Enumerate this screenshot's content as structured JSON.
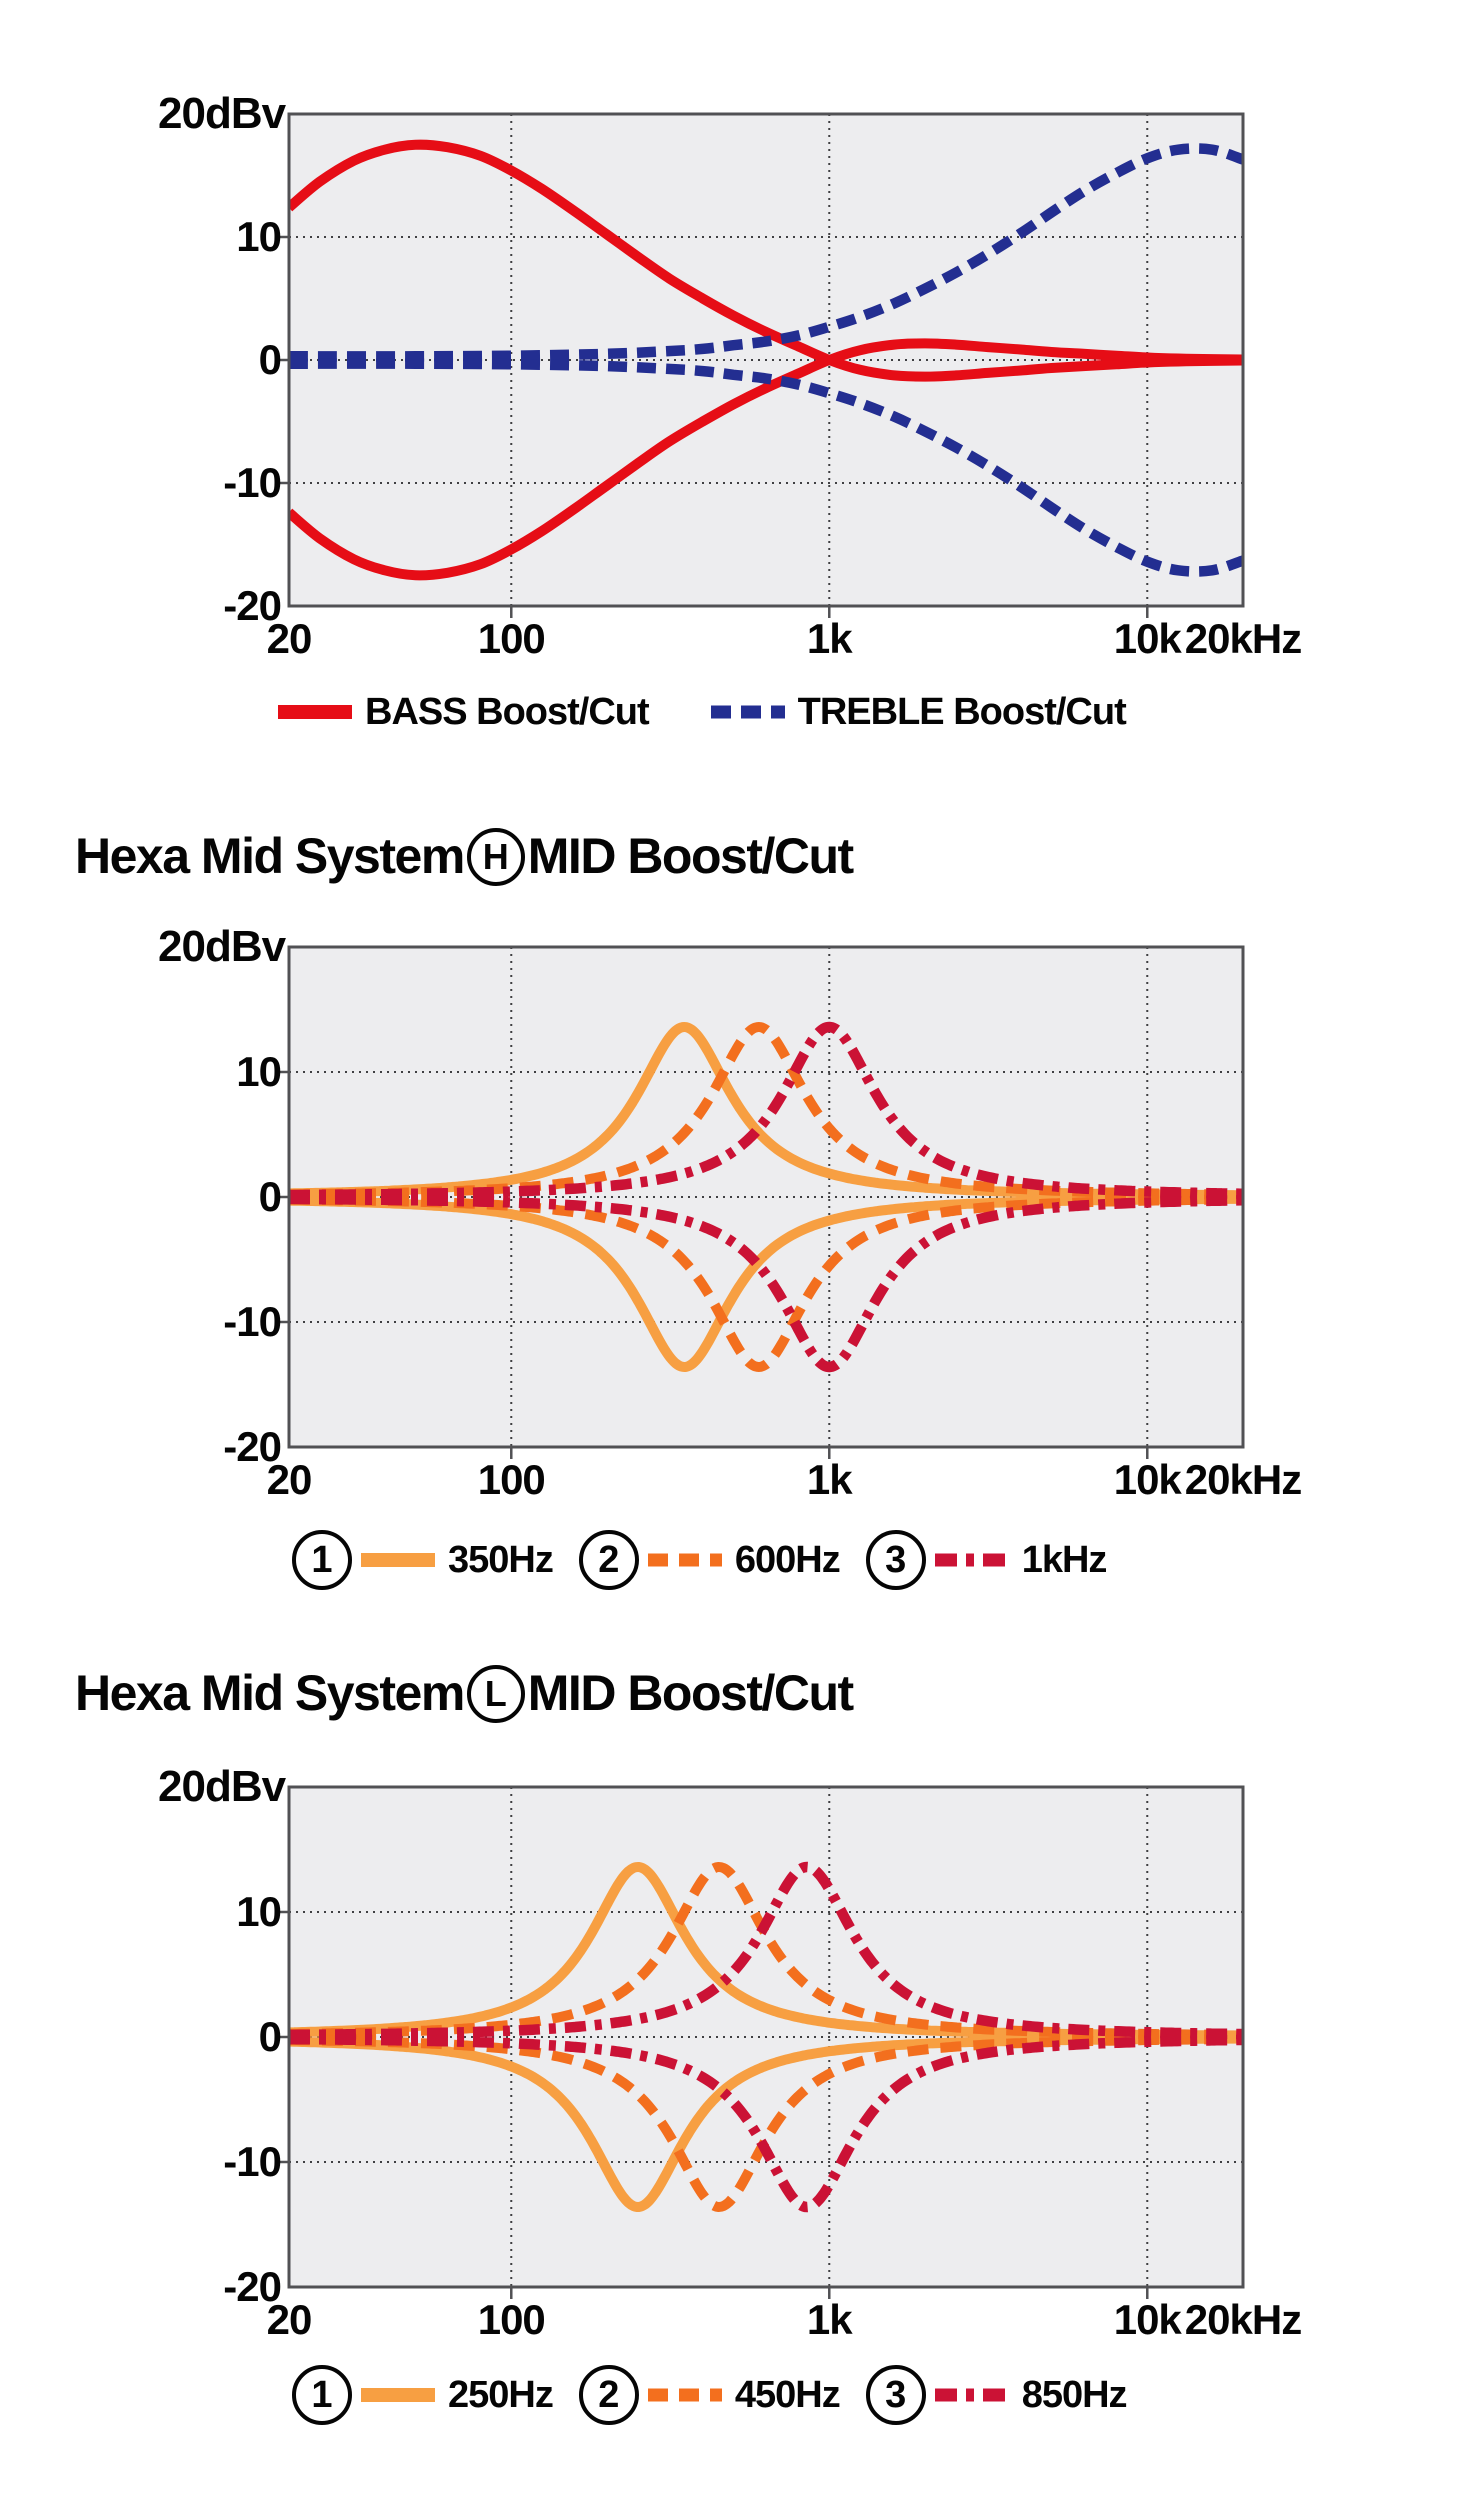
{
  "page": {
    "background": "#ffffff",
    "plot_bg": "#EDEDEF",
    "plot_border_color": "#515154",
    "grid_color": "#3F3F42",
    "text_color": "#050505"
  },
  "chart_data": [
    {
      "type": "line",
      "id": "tone-boost-cut",
      "unit_label": "20dBv",
      "xlabel": "",
      "ylabel": "dBv",
      "x_scale": "log",
      "x_range_hz": [
        20,
        20000
      ],
      "ylim": [
        -20,
        20
      ],
      "grid": "dotted",
      "y_ticks": [
        {
          "db": 10,
          "label": "10"
        },
        {
          "db": 0,
          "label": "0"
        },
        {
          "db": -10,
          "label": "-10"
        },
        {
          "db": -20,
          "label": "-20"
        }
      ],
      "x_ticks": [
        {
          "f": 20,
          "label": "20"
        },
        {
          "f": 100,
          "label": "100"
        },
        {
          "f": 1000,
          "label": "1k"
        },
        {
          "f": 10000,
          "label": "10k"
        },
        {
          "f": 20000,
          "label": "20kHz"
        }
      ],
      "series": [
        {
          "name": "BASS boost",
          "mirror_name": "BASS cut",
          "color": "#E60D16",
          "style": "solid",
          "width": 10,
          "dash": null,
          "mirror": true,
          "type": "points",
          "points": [
            [
              20,
              12.4
            ],
            [
              25,
              14.5
            ],
            [
              32,
              16.2
            ],
            [
              40,
              17.1
            ],
            [
              50,
              17.5
            ],
            [
              63,
              17.3
            ],
            [
              80,
              16.6
            ],
            [
              100,
              15.4
            ],
            [
              125,
              13.9
            ],
            [
              160,
              12.0
            ],
            [
              200,
              10.2
            ],
            [
              250,
              8.4
            ],
            [
              315,
              6.6
            ],
            [
              400,
              5.0
            ],
            [
              500,
              3.6
            ],
            [
              630,
              2.3
            ],
            [
              800,
              1.1
            ],
            [
              1000,
              0.0
            ],
            [
              1250,
              -0.8
            ],
            [
              1600,
              -1.25
            ],
            [
              2000,
              -1.35
            ],
            [
              2500,
              -1.25
            ],
            [
              3150,
              -1.05
            ],
            [
              4000,
              -0.85
            ],
            [
              5000,
              -0.65
            ],
            [
              6300,
              -0.5
            ],
            [
              8000,
              -0.35
            ],
            [
              10000,
              -0.2
            ],
            [
              12500,
              -0.12
            ],
            [
              16000,
              -0.07
            ],
            [
              20000,
              -0.04
            ]
          ]
        },
        {
          "name": "TREBLE boost",
          "mirror_name": "TREBLE cut",
          "color": "#232E91",
          "style": "dashed",
          "width": 10.5,
          "dash": [
            19,
            10
          ],
          "mirror": true,
          "type": "points",
          "points": [
            [
              20,
              0.3
            ],
            [
              50,
              0.3
            ],
            [
              100,
              0.35
            ],
            [
              200,
              0.5
            ],
            [
              300,
              0.7
            ],
            [
              400,
              0.9
            ],
            [
              500,
              1.2
            ],
            [
              630,
              1.5
            ],
            [
              800,
              2.0
            ],
            [
              1000,
              2.7
            ],
            [
              1250,
              3.5
            ],
            [
              1600,
              4.6
            ],
            [
              2000,
              5.8
            ],
            [
              2500,
              7.1
            ],
            [
              3150,
              8.6
            ],
            [
              4000,
              10.3
            ],
            [
              5000,
              12.0
            ],
            [
              6300,
              13.7
            ],
            [
              8000,
              15.2
            ],
            [
              10000,
              16.4
            ],
            [
              12500,
              17.1
            ],
            [
              16000,
              17.1
            ],
            [
              20000,
              16.3
            ]
          ]
        }
      ],
      "legend": [
        {
          "swatch": "solid",
          "color": "#E60D16",
          "dash": null,
          "label": "BASS Boost/Cut"
        },
        {
          "swatch": "dashed",
          "color": "#232E91",
          "dash": [
            20,
            10
          ],
          "label": "TREBLE Boost/Cut"
        }
      ]
    },
    {
      "type": "line",
      "id": "hexa-mid-h",
      "title": {
        "pre": "Hexa Mid System",
        "badge": "H",
        "post": "MID Boost/Cut"
      },
      "unit_label": "20dBv",
      "x_scale": "log",
      "x_range_hz": [
        20,
        20000
      ],
      "ylim": [
        -20,
        20
      ],
      "grid": "dotted",
      "y_ticks": [
        {
          "db": 10,
          "label": "10"
        },
        {
          "db": 0,
          "label": "0"
        },
        {
          "db": -10,
          "label": "-10"
        },
        {
          "db": -20,
          "label": "-20"
        }
      ],
      "x_ticks": [
        {
          "f": 20,
          "label": "20"
        },
        {
          "f": 100,
          "label": "100"
        },
        {
          "f": 1000,
          "label": "1k"
        },
        {
          "f": 10000,
          "label": "10k"
        },
        {
          "f": 20000,
          "label": "20kHz"
        }
      ],
      "series": [
        {
          "name": "350Hz boost/cut",
          "color": "#F79F42",
          "style": "solid",
          "width": 10,
          "dash": null,
          "mirror": true,
          "type": "peak",
          "f0": 350,
          "gain_db": 13.6,
          "width_ln": 0.42
        },
        {
          "name": "600Hz boost/cut",
          "color": "#F36F1E",
          "style": "dashed",
          "width": 10,
          "dash": [
            21,
            12
          ],
          "mirror": true,
          "type": "peak",
          "f0": 600,
          "gain_db": 13.6,
          "width_ln": 0.42
        },
        {
          "name": "1kHz boost/cut",
          "color": "#CB1235",
          "style": "dashdot",
          "width": 10.5,
          "dash": [
            21,
            9,
            7,
            9
          ],
          "mirror": true,
          "type": "peak",
          "f0": 1000,
          "gain_db": 13.6,
          "width_ln": 0.42
        }
      ],
      "legend": [
        {
          "num": "1",
          "swatch": "solid",
          "color": "#F79F42",
          "dash": null,
          "label": "350Hz"
        },
        {
          "num": "2",
          "swatch": "dashed",
          "color": "#F36F1E",
          "dash": [
            20,
            11
          ],
          "label": "600Hz"
        },
        {
          "num": "3",
          "swatch": "dashdot",
          "color": "#CB1235",
          "dash": [
            22,
            9,
            8,
            9
          ],
          "label": "1kHz"
        }
      ]
    },
    {
      "type": "line",
      "id": "hexa-mid-l",
      "title": {
        "pre": "Hexa Mid System",
        "badge": "L",
        "post": "MID Boost/Cut"
      },
      "unit_label": "20dBv",
      "x_scale": "log",
      "x_range_hz": [
        20,
        20000
      ],
      "ylim": [
        -20,
        20
      ],
      "grid": "dotted",
      "y_ticks": [
        {
          "db": 10,
          "label": "10"
        },
        {
          "db": 0,
          "label": "0"
        },
        {
          "db": -10,
          "label": "-10"
        },
        {
          "db": -20,
          "label": "-20"
        }
      ],
      "x_ticks": [
        {
          "f": 20,
          "label": "20"
        },
        {
          "f": 100,
          "label": "100"
        },
        {
          "f": 1000,
          "label": "1k"
        },
        {
          "f": 10000,
          "label": "10k"
        },
        {
          "f": 20000,
          "label": "20kHz"
        }
      ],
      "series": [
        {
          "name": "250Hz boost/cut",
          "color": "#F79F42",
          "style": "solid",
          "width": 10,
          "dash": null,
          "mirror": true,
          "type": "peak",
          "f0": 250,
          "gain_db": 13.6,
          "width_ln": 0.42
        },
        {
          "name": "450Hz boost/cut",
          "color": "#F36F1E",
          "style": "dashed",
          "width": 10,
          "dash": [
            21,
            12
          ],
          "mirror": true,
          "type": "peak",
          "f0": 450,
          "gain_db": 13.6,
          "width_ln": 0.42
        },
        {
          "name": "850Hz boost/cut",
          "color": "#CB1235",
          "style": "dashdot",
          "width": 10.5,
          "dash": [
            21,
            9,
            7,
            9
          ],
          "mirror": true,
          "type": "peak",
          "f0": 850,
          "gain_db": 13.6,
          "width_ln": 0.42
        }
      ],
      "legend": [
        {
          "num": "1",
          "swatch": "solid",
          "color": "#F79F42",
          "dash": null,
          "label": "250Hz"
        },
        {
          "num": "2",
          "swatch": "dashed",
          "color": "#F36F1E",
          "dash": [
            20,
            11
          ],
          "label": "450Hz"
        },
        {
          "num": "3",
          "swatch": "dashdot",
          "color": "#CB1235",
          "dash": [
            22,
            9,
            8,
            9
          ],
          "label": "850Hz"
        }
      ]
    }
  ]
}
